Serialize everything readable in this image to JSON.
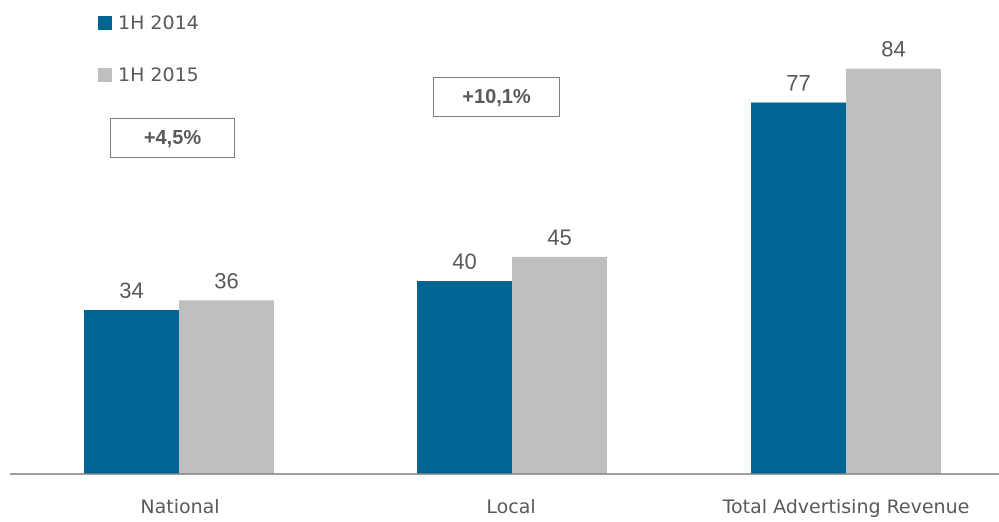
{
  "chart_data": {
    "type": "bar",
    "categories": [
      "National",
      "Local",
      "Total Advertising Revenue"
    ],
    "series": [
      {
        "name": "1H 2014",
        "values": [
          34,
          40,
          77
        ],
        "color": "#006592"
      },
      {
        "name": "1H 2015",
        "values": [
          36,
          45,
          84
        ],
        "color": "#bfbfbf"
      }
    ],
    "ylim": [
      0,
      90
    ],
    "grid": false,
    "legend_position": "top-left",
    "annotations": [
      {
        "text": "+4,5%",
        "category": "National"
      },
      {
        "text": "+10,1%",
        "category": "Local"
      }
    ]
  },
  "colors": {
    "axis": "#808080",
    "label": "#595959"
  }
}
